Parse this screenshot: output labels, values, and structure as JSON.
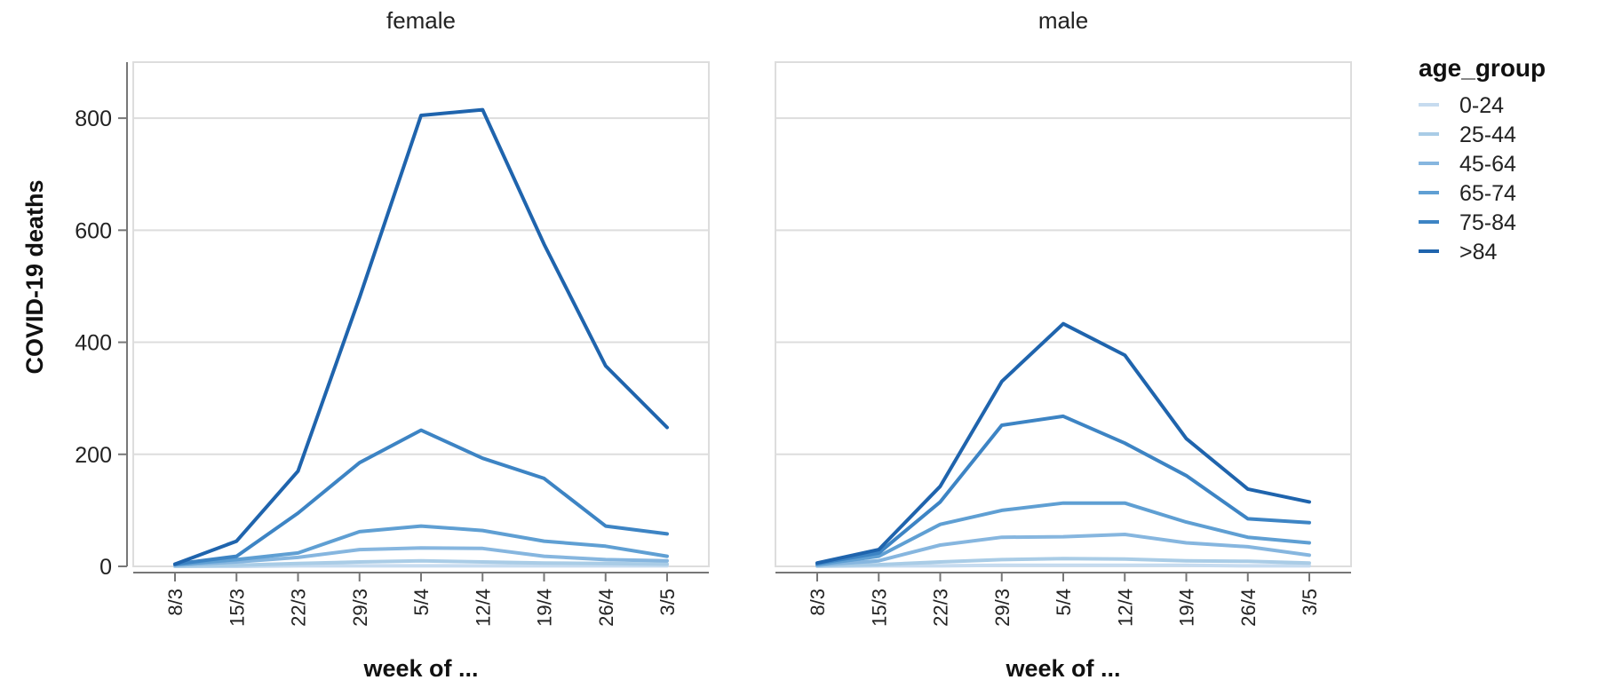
{
  "chart_data": {
    "type": "line",
    "y_axis_title": "COVID-19 deaths",
    "x_axis_title": "week of ...",
    "x": [
      "8/3",
      "15/3",
      "22/3",
      "29/3",
      "5/4",
      "12/4",
      "19/4",
      "26/4",
      "3/5"
    ],
    "y_ticks": [
      0,
      200,
      400,
      600,
      800
    ],
    "ylim": [
      0,
      900
    ],
    "grid": true,
    "legend": {
      "title": "age_group",
      "placement": "right",
      "items": [
        "0-24",
        "25-44",
        "45-64",
        "65-74",
        "75-84",
        ">84"
      ]
    },
    "series_colors": [
      "#c6dbef",
      "#a9cce6",
      "#86b6df",
      "#5f9fd3",
      "#3d84c4",
      "#1f64ad"
    ],
    "panels": [
      {
        "title": "female",
        "series": [
          {
            "name": "0-24",
            "values": [
              0,
              0,
              1,
              1,
              1,
              1,
              1,
              1,
              1
            ]
          },
          {
            "name": "25-44",
            "values": [
              0,
              2,
              5,
              8,
              10,
              8,
              6,
              5,
              4
            ]
          },
          {
            "name": "45-64",
            "values": [
              2,
              8,
              16,
              30,
              33,
              32,
              18,
              12,
              10
            ]
          },
          {
            "name": "65-74",
            "values": [
              3,
              12,
              24,
              62,
              72,
              64,
              45,
              36,
              18
            ]
          },
          {
            "name": "75-84",
            "values": [
              4,
              18,
              95,
              185,
              243,
              193,
              157,
              72,
              58
            ]
          },
          {
            "name": ">84",
            "values": [
              4,
              45,
              170,
              480,
              805,
              815,
              575,
              358,
              248
            ]
          }
        ]
      },
      {
        "title": "male",
        "series": [
          {
            "name": "0-24",
            "values": [
              0,
              1,
              1,
              2,
              2,
              2,
              2,
              1,
              1
            ]
          },
          {
            "name": "25-44",
            "values": [
              1,
              3,
              8,
              12,
              14,
              13,
              10,
              9,
              6
            ]
          },
          {
            "name": "45-64",
            "values": [
              2,
              10,
              38,
              52,
              53,
              57,
              42,
              35,
              20
            ]
          },
          {
            "name": "65-74",
            "values": [
              3,
              18,
              75,
              100,
              113,
              113,
              79,
              52,
              42
            ]
          },
          {
            "name": "75-84",
            "values": [
              5,
              24,
              115,
              252,
              268,
              220,
              162,
              85,
              78
            ]
          },
          {
            "name": ">84",
            "values": [
              6,
              30,
              143,
              330,
              433,
              377,
              228,
              138,
              115
            ]
          }
        ]
      }
    ]
  }
}
